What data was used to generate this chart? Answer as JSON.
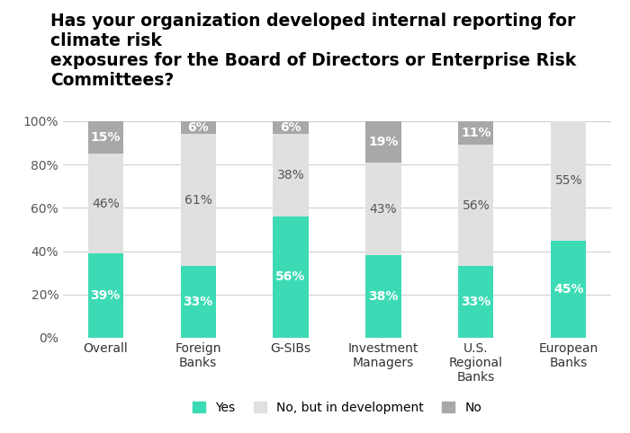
{
  "title": "Has your organization developed internal reporting for climate risk\nexposures for the Board of Directors or Enterprise Risk Committees?",
  "categories": [
    "Overall",
    "Foreign\nBanks",
    "G-SIBs",
    "Investment\nManagers",
    "U.S.\nRegional\nBanks",
    "European\nBanks"
  ],
  "yes": [
    39,
    33,
    56,
    38,
    33,
    45
  ],
  "no_dev": [
    46,
    61,
    38,
    43,
    56,
    55
  ],
  "no": [
    15,
    6,
    6,
    19,
    11,
    0
  ],
  "yes_labels": [
    "39%",
    "33%",
    "56%",
    "38%",
    "33%",
    "45%"
  ],
  "no_dev_labels": [
    "46%",
    "61%",
    "38%",
    "43%",
    "56%",
    "55%"
  ],
  "no_labels": [
    "15%",
    "6%",
    "6%",
    "19%",
    "11%",
    ""
  ],
  "color_yes": "#3DDBB5",
  "color_no_dev": "#E0E0E0",
  "color_no": "#A8A8A8",
  "legend_labels": [
    "Yes",
    "No, but in development",
    "No"
  ],
  "ylim": [
    0,
    100
  ],
  "yticks": [
    0,
    20,
    40,
    60,
    80,
    100
  ],
  "ytick_labels": [
    "0%",
    "20%",
    "40%",
    "60%",
    "80%",
    "100%"
  ],
  "bar_width": 0.38,
  "title_fontsize": 13.5,
  "tick_fontsize": 10,
  "label_fontsize": 10,
  "legend_fontsize": 10,
  "yes_label_color": "white",
  "no_dev_label_color": "#555555",
  "no_label_color": "white"
}
